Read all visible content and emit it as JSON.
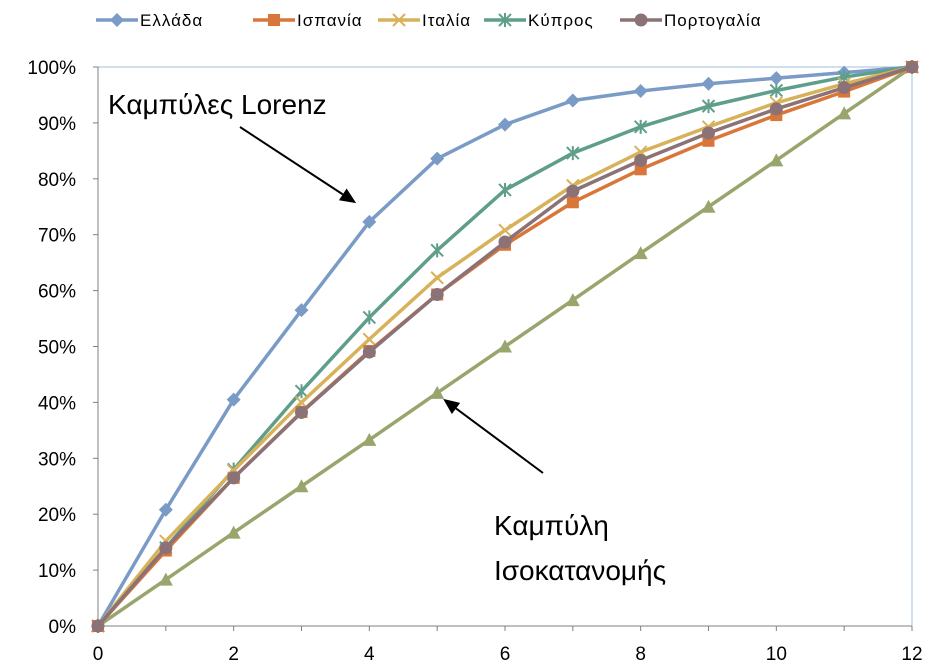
{
  "chart_data": {
    "type": "line",
    "x": [
      0,
      1,
      2,
      3,
      4,
      5,
      6,
      7,
      8,
      9,
      10,
      11,
      12
    ],
    "xlim": [
      0,
      12
    ],
    "ylim": [
      0,
      100
    ],
    "x_ticks": [
      0,
      2,
      4,
      6,
      8,
      10,
      12
    ],
    "y_ticks": [
      0,
      10,
      20,
      30,
      40,
      50,
      60,
      70,
      80,
      90,
      100
    ],
    "y_tick_labels": [
      "0%",
      "10%",
      "20%",
      "30%",
      "40%",
      "50%",
      "60%",
      "70%",
      "80%",
      "90%",
      "100%"
    ],
    "grid": false,
    "legend_position": "top",
    "series": [
      {
        "name": "Ελλάδα",
        "color": "#7b9bc7",
        "marker": "diamond",
        "values": [
          0,
          20.8,
          40.5,
          56.5,
          72.3,
          83.6,
          89.7,
          94.0,
          95.7,
          97.0,
          98.0,
          99.0,
          100
        ]
      },
      {
        "name": "Ισπανία",
        "color": "#d9763a",
        "marker": "square",
        "values": [
          0,
          13.5,
          26.5,
          38.3,
          49.2,
          59.3,
          68.2,
          75.8,
          81.7,
          86.8,
          91.4,
          95.6,
          100
        ]
      },
      {
        "name": "Ιταλία",
        "color": "#d8b25a",
        "marker": "x",
        "values": [
          0,
          15.2,
          27.8,
          40.0,
          51.3,
          62.3,
          70.8,
          78.8,
          84.8,
          89.3,
          93.6,
          97.0,
          100
        ]
      },
      {
        "name": "Κύπρος",
        "color": "#5f9e8a",
        "marker": "asterisk",
        "values": [
          0,
          14.0,
          28.0,
          42.0,
          55.2,
          67.2,
          78.0,
          84.6,
          89.3,
          93.0,
          95.8,
          98.2,
          100
        ]
      },
      {
        "name": "Πορτογαλία",
        "color": "#8a7276",
        "marker": "circle",
        "values": [
          0,
          14.0,
          26.5,
          38.2,
          49.0,
          59.3,
          68.7,
          77.8,
          83.3,
          88.2,
          92.5,
          96.3,
          100
        ]
      },
      {
        "color": "#98a56c",
        "marker": "triangle",
        "values": [
          0,
          8.3,
          16.7,
          25.0,
          33.3,
          41.7,
          50.0,
          58.3,
          66.7,
          75.0,
          83.3,
          91.7,
          100
        ]
      }
    ],
    "annotations": [
      {
        "id": "lorenz",
        "lines": [
          "Καμπύλες Lorenz"
        ],
        "points_to": {
          "x": 3.85,
          "y": 76
        }
      },
      {
        "id": "equality",
        "lines": [
          "Καμπύλη",
          "Ισοκατανομής"
        ],
        "points_to": {
          "x": 5.0,
          "y": 41.7
        }
      }
    ]
  }
}
